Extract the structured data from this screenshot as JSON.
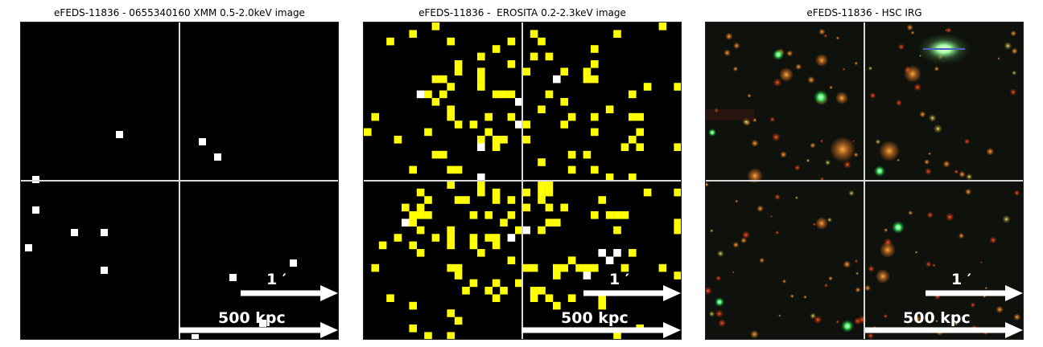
{
  "panels": [
    {
      "title": "eFEDS-11836 - 0655340160 XMM 0.5-2.0keV image",
      "kind": "xmm",
      "scale_arcmin_label": "1 ′",
      "scale_kpc_label": "500 kpc"
    },
    {
      "title": "eFEDS-11836 -  EROSITA 0.2-2.3keV image",
      "kind": "erosita",
      "scale_arcmin_label": "1 ′",
      "scale_kpc_label": "500 kpc"
    },
    {
      "title": "eFEDS-11836 - HSC IRG",
      "kind": "optical",
      "scale_arcmin_label": "1 ′",
      "scale_kpc_label": "500 kpc"
    }
  ],
  "colors": {
    "background": "#000000",
    "crosshair": "#d8d8d8",
    "xmm_pixel": "#ffffff",
    "erosita_pixel": "#ffff00",
    "erosita_bright_pixel": "#ffffff",
    "scalebar": "#ffffff"
  }
}
